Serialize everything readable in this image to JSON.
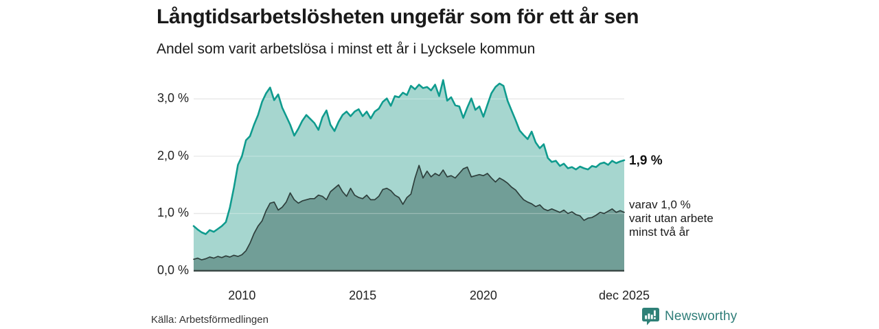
{
  "header": {
    "title": "Långtidsarbetslösheten ungefär som för ett år sen",
    "subtitle": "Andel som varit arbetslösa i minst ett år i Lycksele kommun"
  },
  "chart_data": {
    "type": "area",
    "title": "Långtidsarbetslösheten ungefär som för ett år sen",
    "subtitle": "Andel som varit arbetslösa i minst ett år i Lycksele kommun",
    "unit": "%",
    "grid": "horizontal",
    "xlim": [
      2008.0,
      2025.833
    ],
    "ylim": [
      0,
      3.4
    ],
    "x_step_years": 0.1666667,
    "y_ticks": [
      {
        "label": "3,0 %",
        "value": 3
      },
      {
        "label": "2,0 %",
        "value": 2
      },
      {
        "label": "1,0 %",
        "value": 1
      },
      {
        "label": "0,0 %",
        "value": 0
      }
    ],
    "x_ticks": [
      {
        "label": "2010",
        "value": 2010
      },
      {
        "label": "2015",
        "value": 2015
      },
      {
        "label": "2020",
        "value": 2020
      },
      {
        "label": "dec 2025",
        "value": 2025.833
      }
    ],
    "series": [
      {
        "name": "arbetslösa minst ett år",
        "line_color": "#0f9b8e",
        "fill_color": "#a6d6cf",
        "line_width": 2.6,
        "end_value": "1,9 %",
        "values": [
          0.78,
          0.72,
          0.67,
          0.64,
          0.71,
          0.68,
          0.73,
          0.78,
          0.85,
          1.1,
          1.45,
          1.85,
          2.0,
          2.28,
          2.35,
          2.55,
          2.72,
          2.95,
          3.1,
          3.2,
          2.98,
          3.08,
          2.85,
          2.7,
          2.55,
          2.36,
          2.48,
          2.62,
          2.72,
          2.65,
          2.58,
          2.46,
          2.68,
          2.8,
          2.55,
          2.44,
          2.6,
          2.72,
          2.78,
          2.7,
          2.78,
          2.82,
          2.7,
          2.78,
          2.66,
          2.78,
          2.83,
          2.95,
          3.01,
          2.88,
          3.05,
          3.03,
          3.11,
          3.07,
          3.23,
          3.17,
          3.25,
          3.19,
          3.21,
          3.15,
          3.25,
          3.05,
          3.33,
          2.97,
          3.03,
          2.89,
          2.87,
          2.67,
          2.85,
          3.01,
          2.81,
          2.87,
          2.69,
          2.9,
          3.1,
          3.21,
          3.27,
          3.23,
          2.97,
          2.8,
          2.63,
          2.45,
          2.37,
          2.3,
          2.43,
          2.24,
          2.14,
          2.21,
          1.97,
          1.9,
          1.92,
          1.83,
          1.87,
          1.79,
          1.81,
          1.77,
          1.82,
          1.79,
          1.77,
          1.83,
          1.81,
          1.87,
          1.89,
          1.85,
          1.92,
          1.88,
          1.91,
          1.93
        ]
      },
      {
        "name": "varav arbetslösa minst två år",
        "line_color": "#2e3f3c",
        "fill_color": "#719e97",
        "line_width": 1.7,
        "end_value": "1,0 %",
        "values": [
          0.2,
          0.22,
          0.19,
          0.21,
          0.24,
          0.22,
          0.25,
          0.23,
          0.26,
          0.24,
          0.27,
          0.25,
          0.28,
          0.35,
          0.48,
          0.65,
          0.78,
          0.87,
          1.05,
          1.18,
          1.2,
          1.06,
          1.11,
          1.2,
          1.36,
          1.24,
          1.18,
          1.22,
          1.24,
          1.26,
          1.26,
          1.32,
          1.3,
          1.24,
          1.38,
          1.44,
          1.5,
          1.38,
          1.3,
          1.44,
          1.32,
          1.28,
          1.26,
          1.32,
          1.24,
          1.24,
          1.3,
          1.42,
          1.44,
          1.4,
          1.32,
          1.28,
          1.16,
          1.28,
          1.34,
          1.62,
          1.84,
          1.62,
          1.74,
          1.64,
          1.7,
          1.66,
          1.76,
          1.64,
          1.66,
          1.62,
          1.7,
          1.78,
          1.81,
          1.64,
          1.66,
          1.68,
          1.66,
          1.7,
          1.62,
          1.55,
          1.62,
          1.58,
          1.53,
          1.46,
          1.41,
          1.32,
          1.24,
          1.2,
          1.17,
          1.12,
          1.15,
          1.08,
          1.05,
          1.08,
          1.05,
          1.02,
          1.06,
          1.0,
          1.03,
          0.98,
          0.96,
          0.88,
          0.92,
          0.93,
          0.97,
          1.02,
          1.0,
          1.04,
          1.08,
          1.02,
          1.05,
          1.02
        ]
      }
    ],
    "annotations": {
      "end_value_label": "1,9 %",
      "subset_note": "varav 1,0 %\nvarit utan arbete\nminst två år"
    },
    "gridline_color": "#dcdcdc",
    "baseline_color": "#3b4a47"
  },
  "footer": {
    "source": "Källa: Arbetsförmedlingen",
    "brand": "Newsworthy",
    "brand_color": "#2e8077"
  }
}
